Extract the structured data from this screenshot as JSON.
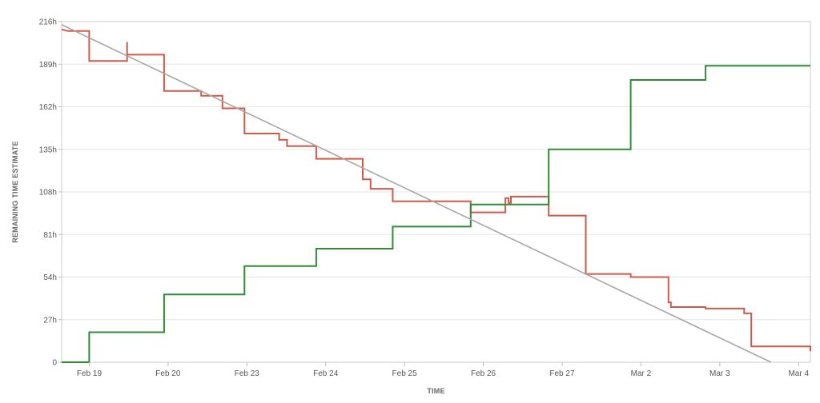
{
  "chart_data": {
    "type": "line",
    "xlabel": "TIME",
    "ylabel": "REMAINING TIME ESTIMATE",
    "ylim": [
      0,
      216
    ],
    "xlim": [
      0,
      9.5
    ],
    "x_ticks": [
      {
        "x": 0.35,
        "label": "Feb 19"
      },
      {
        "x": 1.35,
        "label": "Feb 20"
      },
      {
        "x": 2.35,
        "label": "Feb 23"
      },
      {
        "x": 3.35,
        "label": "Feb 24"
      },
      {
        "x": 4.35,
        "label": "Feb 25"
      },
      {
        "x": 5.35,
        "label": "Feb 26"
      },
      {
        "x": 6.35,
        "label": "Feb 27"
      },
      {
        "x": 7.35,
        "label": "Mar 2"
      },
      {
        "x": 8.35,
        "label": "Mar 3"
      },
      {
        "x": 9.35,
        "label": "Mar 4"
      }
    ],
    "y_ticks": [
      {
        "y": 0,
        "label": "0"
      },
      {
        "y": 27,
        "label": "27h"
      },
      {
        "y": 54,
        "label": "54h"
      },
      {
        "y": 81,
        "label": "81h"
      },
      {
        "y": 108,
        "label": "108h"
      },
      {
        "y": 135,
        "label": "135h"
      },
      {
        "y": 162,
        "label": "162h"
      },
      {
        "y": 189,
        "label": "189h"
      },
      {
        "y": 216,
        "label": "216h"
      }
    ],
    "grid": true,
    "series": [
      {
        "color": "#d05a48",
        "step": true,
        "points": [
          [
            0,
            211
          ],
          [
            0.08,
            210
          ],
          [
            0.35,
            210
          ],
          [
            0.35,
            191
          ],
          [
            0.83,
            191
          ],
          [
            0.83,
            195
          ],
          [
            0.83,
            203
          ],
          [
            0.83,
            195
          ],
          [
            1.3,
            195
          ],
          [
            1.3,
            172
          ],
          [
            1.77,
            172
          ],
          [
            1.77,
            169
          ],
          [
            2.04,
            169
          ],
          [
            2.04,
            161
          ],
          [
            2.32,
            161
          ],
          [
            2.32,
            145
          ],
          [
            2.76,
            145
          ],
          [
            2.76,
            141
          ],
          [
            2.86,
            141
          ],
          [
            2.86,
            137
          ],
          [
            3.23,
            137
          ],
          [
            3.23,
            129
          ],
          [
            3.82,
            129
          ],
          [
            3.82,
            116
          ],
          [
            3.92,
            116
          ],
          [
            3.92,
            110
          ],
          [
            4.2,
            110
          ],
          [
            4.2,
            102
          ],
          [
            5.19,
            102
          ],
          [
            5.19,
            95
          ],
          [
            5.63,
            95
          ],
          [
            5.63,
            104
          ],
          [
            5.67,
            104
          ],
          [
            5.67,
            101
          ],
          [
            5.7,
            101
          ],
          [
            5.7,
            105
          ],
          [
            6.18,
            105
          ],
          [
            6.18,
            93
          ],
          [
            6.65,
            93
          ],
          [
            6.65,
            56
          ],
          [
            7.22,
            56
          ],
          [
            7.22,
            54
          ],
          [
            7.7,
            54
          ],
          [
            7.7,
            38
          ],
          [
            7.73,
            38
          ],
          [
            7.73,
            35
          ],
          [
            8.17,
            35
          ],
          [
            8.17,
            34
          ],
          [
            8.66,
            34
          ],
          [
            8.66,
            31
          ],
          [
            8.75,
            31
          ],
          [
            8.75,
            10
          ],
          [
            9.5,
            10
          ],
          [
            9.5,
            7
          ]
        ]
      },
      {
        "color": "#2e8b36",
        "step": true,
        "points": [
          [
            0,
            0
          ],
          [
            0.35,
            0
          ],
          [
            0.35,
            19
          ],
          [
            1.3,
            19
          ],
          [
            1.3,
            43
          ],
          [
            2.32,
            43
          ],
          [
            2.32,
            61
          ],
          [
            3.23,
            61
          ],
          [
            3.23,
            72
          ],
          [
            4.2,
            72
          ],
          [
            4.2,
            86
          ],
          [
            5.19,
            86
          ],
          [
            5.19,
            100
          ],
          [
            6.18,
            100
          ],
          [
            6.18,
            135
          ],
          [
            7.22,
            135
          ],
          [
            7.22,
            179
          ],
          [
            8.17,
            179
          ],
          [
            8.17,
            188
          ],
          [
            9.5,
            188
          ]
        ]
      },
      {
        "color": "#a6a6a6",
        "step": false,
        "points": [
          [
            0,
            214
          ],
          [
            9.0,
            0
          ]
        ]
      }
    ]
  }
}
